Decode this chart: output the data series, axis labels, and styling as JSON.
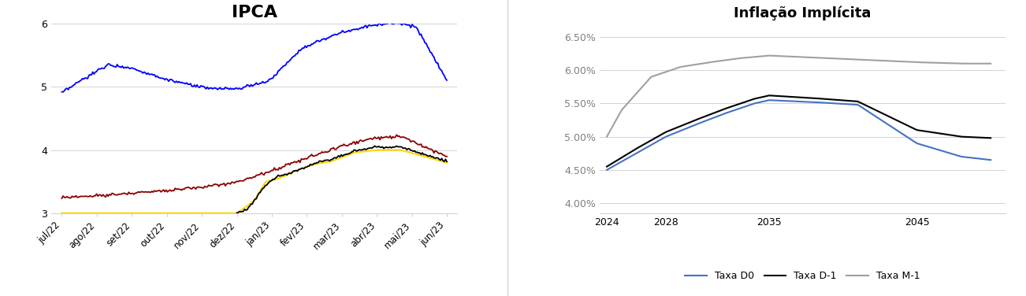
{
  "ipca_title": "IPCA",
  "ipca_xlabels": [
    "jul/22",
    "ago/22",
    "set/22",
    "out/22",
    "nov/22",
    "dez/22",
    "jan/23",
    "fev/23",
    "mar/23",
    "abr/23",
    "mai/23",
    "jun/23"
  ],
  "ipca_ylim": [
    3,
    6
  ],
  "ipca_yticks": [
    3,
    4,
    5,
    6
  ],
  "inflacao_title": "Inflação Implícita",
  "inflacao_yticks": [
    0.04,
    0.045,
    0.05,
    0.055,
    0.06,
    0.065
  ],
  "inflacao_ytick_labels": [
    "4.00%",
    "4.50%",
    "5.00%",
    "5.50%",
    "6.00%",
    "6.50%"
  ],
  "inflacao_ylim": [
    0.0385,
    0.067
  ],
  "blue_color": "#0000FF",
  "darkred_color": "#8B0000",
  "yellow_color": "#FFD700",
  "black_color": "#000000",
  "taxa_d0_color": "#4472C4",
  "taxa_d1_color": "#000000",
  "taxa_m1_color": "#A0A0A0",
  "legend_taxa_d0": "Taxa D0",
  "legend_taxa_d1": "Taxa D-1",
  "legend_taxa_m1": "Taxa M-1"
}
